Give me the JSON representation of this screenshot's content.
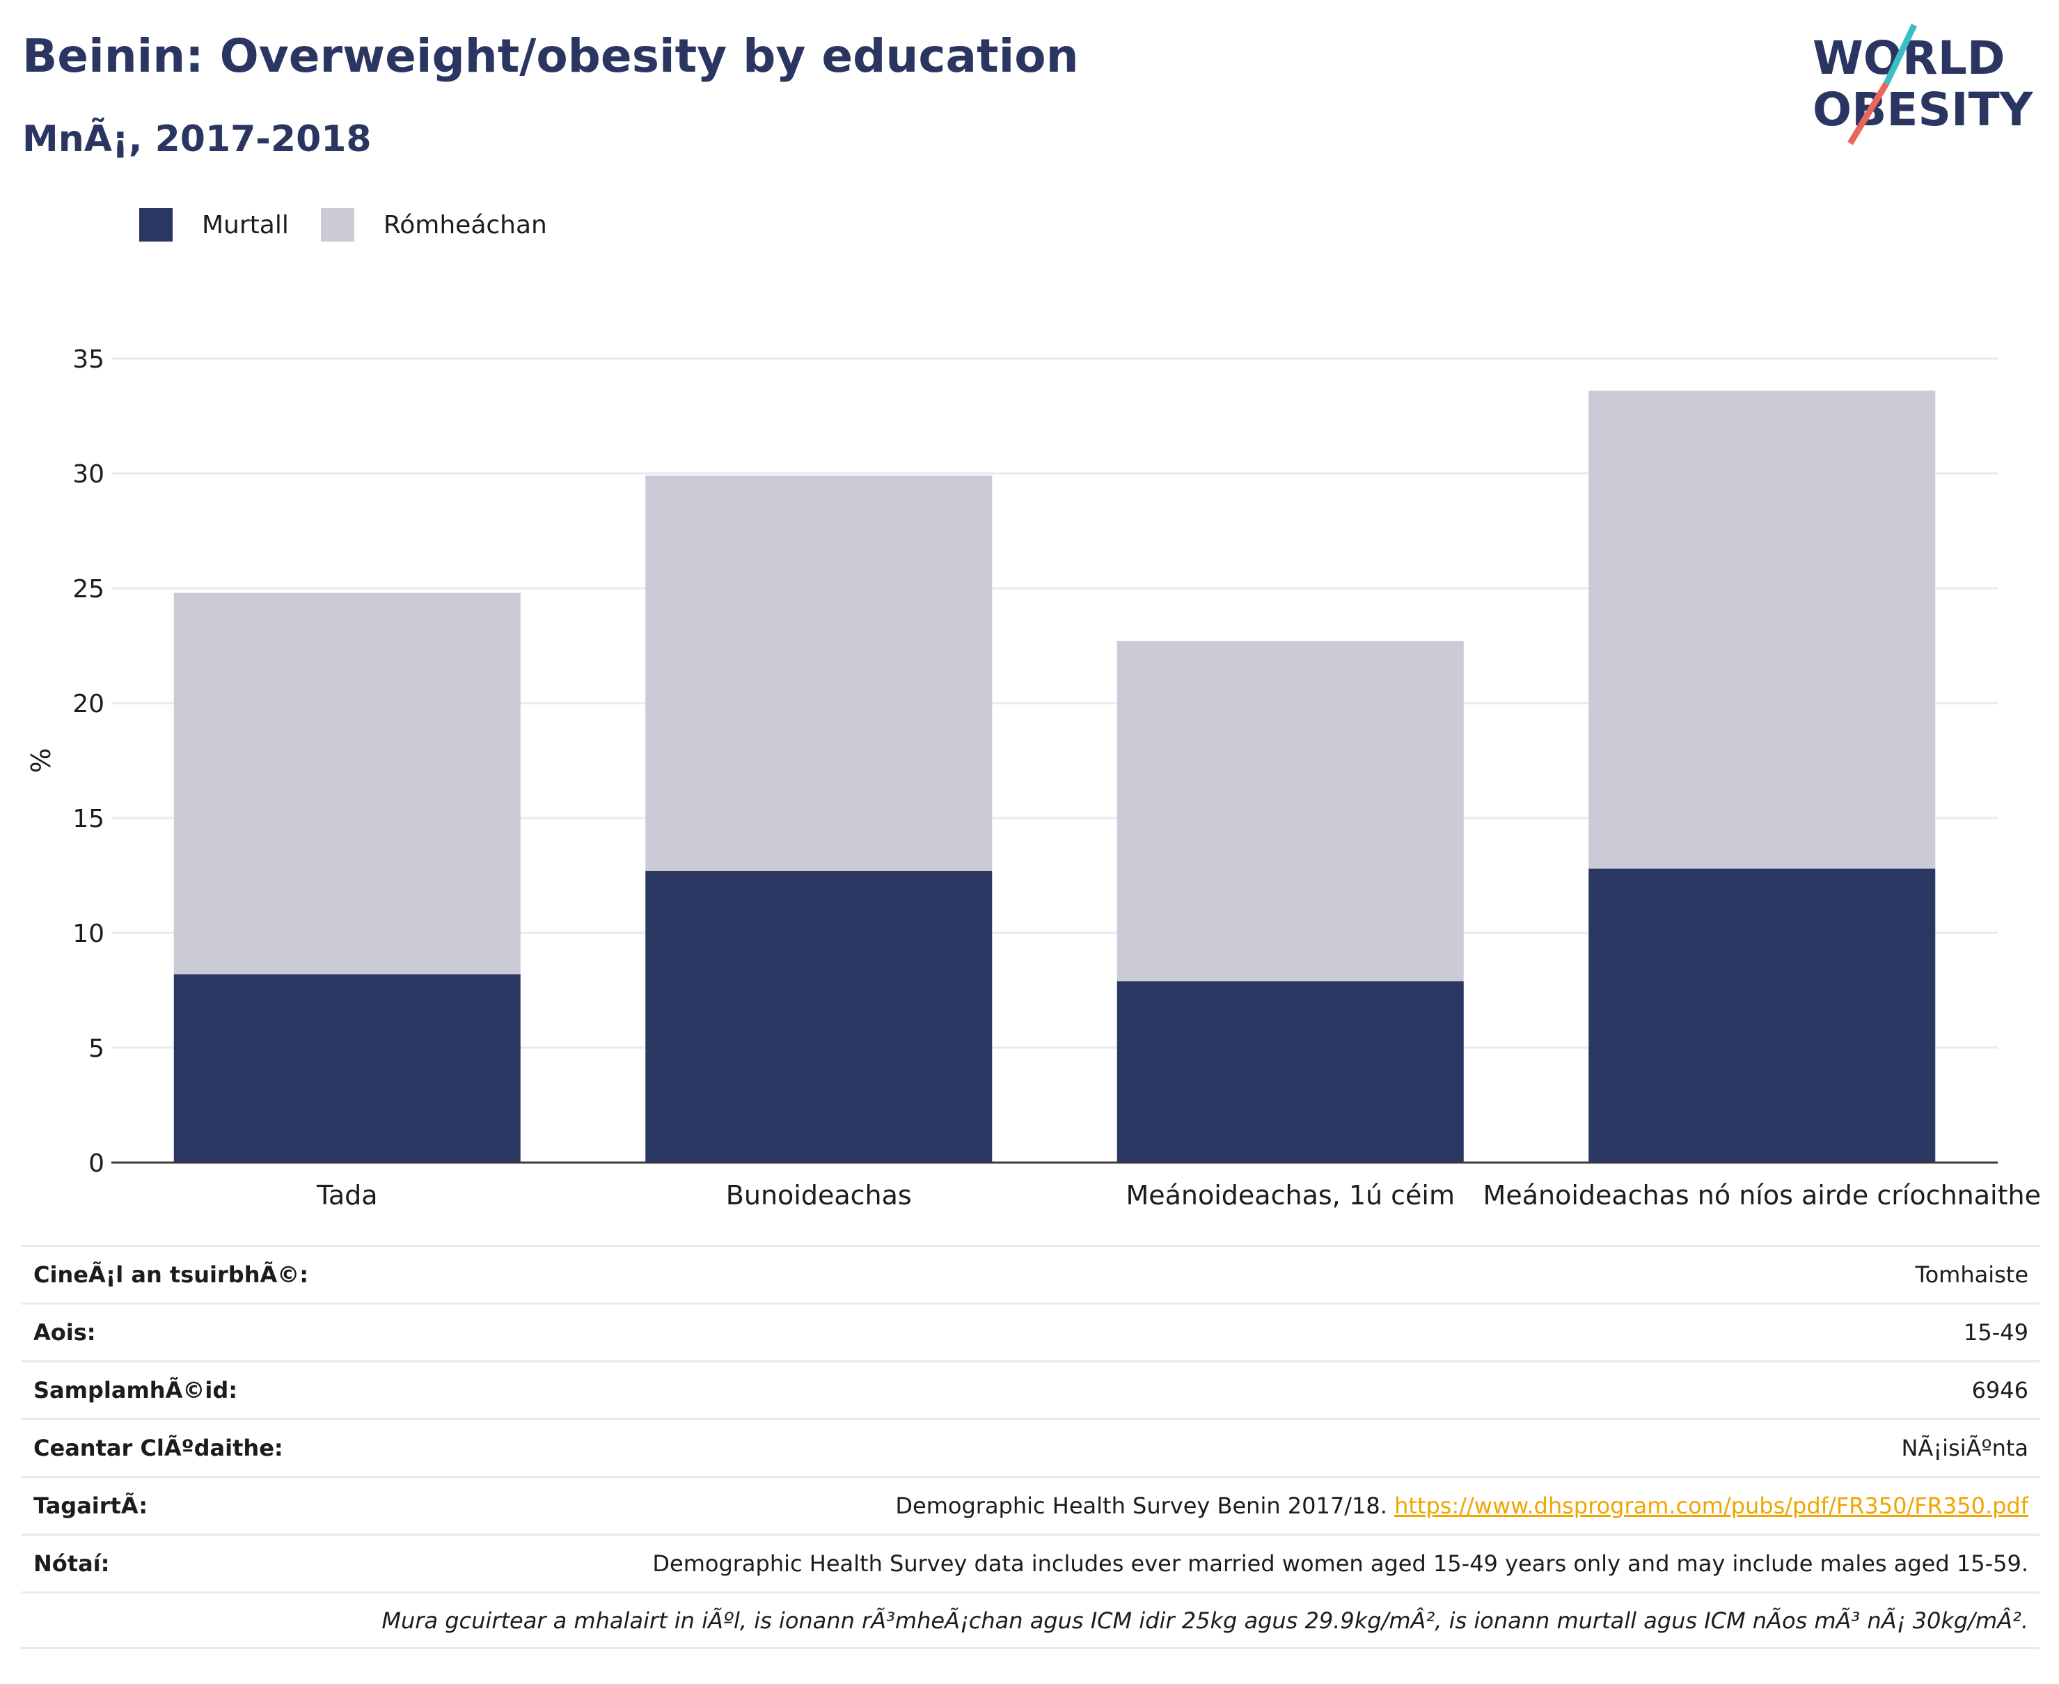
{
  "title": "Beinin: Overweight/obesity by education",
  "subtitle": "MnÃ¡, 2017-2018",
  "logo": {
    "line1": "WORLD",
    "line2": "OBESITY"
  },
  "colors": {
    "murtall": "#2b3763",
    "romheachan": "#cacbd7",
    "title": "#2b3561",
    "link": "#f0a500",
    "logo_teal": "#3bbfc4",
    "logo_red": "#e8665a"
  },
  "legend": [
    {
      "label": "Murtall",
      "color": "#2b3763"
    },
    {
      "label": "Rómheáchan",
      "color": "#cacbd7"
    }
  ],
  "chart_data": {
    "type": "bar",
    "stacked": true,
    "categories": [
      "Tada",
      "Bunoideachas",
      "Meánoideachas, 1ú céim",
      "Meánoideachas nó níos airde críochnaithe"
    ],
    "series": [
      {
        "name": "Murtall",
        "values": [
          8.2,
          12.7,
          7.9,
          12.8
        ]
      },
      {
        "name": "Rómheáchan",
        "values": [
          16.6,
          17.2,
          14.8,
          20.8
        ]
      }
    ],
    "ylabel": "%",
    "ylim": [
      0,
      35
    ],
    "yticks": [
      0,
      5,
      10,
      15,
      20,
      25,
      30,
      35
    ],
    "grid": true
  },
  "info": {
    "survey_type": {
      "label": "CineÃ¡l an tsuirbhÃ©:",
      "value": "Tomhaiste"
    },
    "age": {
      "label": "Aois:",
      "value": "15-49"
    },
    "sample": {
      "label": "SamplamhÃ©id:",
      "value": "6946"
    },
    "area": {
      "label": "Ceantar ClÃºdaithe:",
      "value": "NÃ¡isiÃºnta"
    },
    "reference": {
      "label": "TagairtÃ:",
      "value": "Demographic Health Survey Benin 2017/18.",
      "link": "https://www.dhsprogram.com/pubs/pdf/FR350/FR350.pdf"
    },
    "notes": {
      "label": "Nótaí:",
      "value": "Demographic Health Survey data includes ever married women aged 15-49 years only and may include males aged 15-59."
    },
    "footnote": "Mura gcuirtear a mhalairt in iÃºl, is ionann rÃ³mheÃ¡chan agus ICM idir 25kg agus 29.9kg/mÂ², is ionann murtall agus ICM nÃos mÃ³ nÃ¡ 30kg/mÂ²."
  }
}
